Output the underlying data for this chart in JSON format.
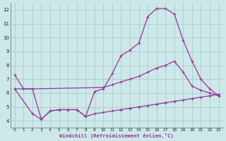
{
  "xlabel": "Windchill (Refroidissement éolien,°C)",
  "bg_color": "#cce8e8",
  "grid_color": "#aacccc",
  "line_color": "#993399",
  "line1_x": [
    0,
    1,
    2,
    3,
    4,
    5,
    6,
    7,
    8,
    9,
    10,
    11,
    12,
    13,
    14,
    15,
    16,
    17,
    18,
    19,
    20,
    21,
    22,
    23
  ],
  "line1_y": [
    7.3,
    6.3,
    6.3,
    4.1,
    4.7,
    4.8,
    4.8,
    4.8,
    4.3,
    6.1,
    6.3,
    7.4,
    8.7,
    9.1,
    9.6,
    11.5,
    12.1,
    12.1,
    11.7,
    9.8,
    8.3,
    7.0,
    6.3,
    5.8
  ],
  "line2_x": [
    0,
    2,
    10,
    11,
    12,
    13,
    14,
    15,
    16,
    17,
    18,
    19,
    20,
    21,
    22,
    23
  ],
  "line2_y": [
    6.3,
    6.3,
    6.4,
    6.6,
    6.8,
    7.0,
    7.2,
    7.5,
    7.8,
    8.0,
    8.3,
    7.5,
    6.5,
    6.2,
    6.0,
    5.8
  ],
  "line3_x": [
    0,
    2,
    3,
    4,
    5,
    6,
    7,
    8,
    9,
    10,
    11,
    12,
    13,
    14,
    15,
    16,
    17,
    18,
    19,
    20,
    21,
    22,
    23
  ],
  "line3_y": [
    6.3,
    4.5,
    4.1,
    4.7,
    4.8,
    4.8,
    4.8,
    4.3,
    4.5,
    4.6,
    4.7,
    4.8,
    4.9,
    5.0,
    5.1,
    5.2,
    5.3,
    5.4,
    5.5,
    5.6,
    5.7,
    5.8,
    5.9
  ],
  "ylim": [
    3.5,
    12.5
  ],
  "xlim": [
    -0.5,
    23.5
  ],
  "yticks": [
    4,
    5,
    6,
    7,
    8,
    9,
    10,
    11,
    12
  ],
  "xticks": [
    0,
    1,
    2,
    3,
    4,
    5,
    6,
    7,
    8,
    9,
    10,
    11,
    12,
    13,
    14,
    15,
    16,
    17,
    18,
    19,
    20,
    21,
    22,
    23
  ]
}
